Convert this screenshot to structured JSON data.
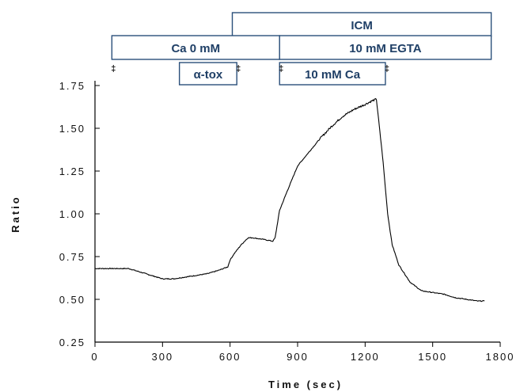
{
  "chart_data": {
    "type": "line",
    "xlabel": "Time (sec)",
    "ylabel": "Ratio",
    "xlim": [
      0,
      1800
    ],
    "ylim": [
      0.25,
      1.75
    ],
    "xticks": [
      0,
      300,
      600,
      900,
      1200,
      1500,
      1800
    ],
    "yticks": [
      0.25,
      0.5,
      0.75,
      1.0,
      1.25,
      1.5,
      1.75
    ],
    "xtick_labels": [
      "0",
      "300",
      "600",
      "900",
      "1200",
      "1500",
      "1800"
    ],
    "ytick_labels": [
      "0.25",
      "0.50",
      "0.75",
      "1.00",
      "1.25",
      "1.50",
      "1.75"
    ],
    "grid": false,
    "series": [
      {
        "color": "#000000",
        "x": [
          0,
          50,
          100,
          150,
          200,
          250,
          300,
          350,
          400,
          450,
          500,
          550,
          590,
          600,
          620,
          650,
          680,
          700,
          750,
          790,
          800,
          820,
          850,
          900,
          950,
          1000,
          1050,
          1100,
          1150,
          1200,
          1230,
          1250,
          1260,
          1280,
          1300,
          1320,
          1350,
          1400,
          1450,
          1500,
          1550,
          1600,
          1650,
          1700,
          1730
        ],
        "y": [
          0.68,
          0.68,
          0.68,
          0.68,
          0.66,
          0.64,
          0.62,
          0.62,
          0.63,
          0.64,
          0.65,
          0.67,
          0.69,
          0.73,
          0.77,
          0.82,
          0.86,
          0.86,
          0.85,
          0.84,
          0.86,
          1.02,
          1.12,
          1.28,
          1.36,
          1.44,
          1.51,
          1.57,
          1.61,
          1.64,
          1.66,
          1.67,
          1.55,
          1.3,
          1.0,
          0.82,
          0.7,
          0.6,
          0.55,
          0.54,
          0.53,
          0.51,
          0.5,
          0.49,
          0.49
        ]
      }
    ],
    "annotations": [
      {
        "label": "ICM",
        "x_start": 610,
        "x_end": 1760,
        "row": 1
      },
      {
        "label": "Ca 0 mM",
        "x_start": 75,
        "x_end": 820,
        "row": 2
      },
      {
        "label": "10 mM EGTA",
        "x_start": 820,
        "x_end": 1760,
        "row": 2
      },
      {
        "label": "α-tox",
        "x_start": 375,
        "x_end": 630,
        "row": 3
      },
      {
        "label": "10 mM Ca",
        "x_start": 820,
        "x_end": 1290,
        "row": 3
      }
    ]
  }
}
